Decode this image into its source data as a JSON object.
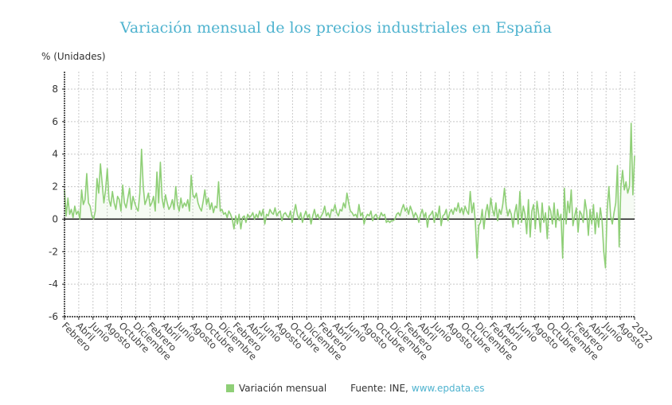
{
  "chart_data": {
    "type": "line",
    "title": "Variación mensual de los precios industriales en España",
    "ylabel": "% (Unidades)",
    "xlabel": "",
    "ylim": [
      -6,
      8
    ],
    "yticks": [
      -6,
      -4,
      -2,
      0,
      2,
      4,
      6,
      8
    ],
    "grid": true,
    "legend_position": "bottom",
    "x_tick_labels": [
      "Febrero",
      "Abril",
      "Junio",
      "Agosto",
      "Octubre",
      "Diciembre",
      "Febrero",
      "Abril",
      "Junio",
      "Agosto",
      "Octubre",
      "Diciembre",
      "Febrero",
      "Abril",
      "Junio",
      "Agosto",
      "Octubre",
      "Diciembre",
      "Febrero",
      "Abril",
      "Junio",
      "Agosto",
      "Octubre",
      "Diciembre",
      "Febrero",
      "Abril",
      "Junio",
      "Agosto",
      "Octubre",
      "Diciembre",
      "Febrero",
      "Abril",
      "Junio",
      "Agosto",
      "Octubre",
      "Diciembre",
      "Febrero",
      "Abril",
      "Junio",
      "Agosto",
      "2022"
    ],
    "series": [
      {
        "name": "Variación mensual",
        "color": "#8fcf77",
        "values": [
          1.8,
          0.2,
          1.3,
          0.3,
          0.6,
          0.1,
          0.8,
          0.3,
          0.5,
          0.0,
          1.8,
          0.9,
          1.2,
          2.8,
          1.0,
          0.8,
          0.2,
          0.0,
          0.5,
          2.5,
          1.6,
          3.4,
          2.2,
          1.0,
          1.8,
          3.1,
          1.2,
          0.8,
          1.7,
          1.0,
          0.6,
          1.4,
          1.2,
          0.5,
          2.1,
          1.0,
          0.7,
          1.3,
          1.9,
          0.6,
          1.4,
          1.0,
          0.7,
          0.5,
          1.6,
          4.3,
          2.0,
          0.9,
          1.2,
          1.6,
          0.8,
          1.0,
          1.4,
          0.5,
          2.9,
          1.0,
          3.5,
          1.3,
          0.7,
          1.5,
          1.0,
          0.6,
          0.8,
          1.2,
          0.6,
          2.0,
          0.9,
          0.5,
          1.3,
          0.7,
          1.0,
          0.8,
          1.2,
          0.5,
          2.7,
          1.5,
          1.3,
          1.6,
          1.0,
          0.7,
          0.5,
          1.1,
          1.8,
          0.9,
          1.3,
          0.6,
          1.0,
          0.4,
          0.8,
          0.7,
          2.3,
          0.5,
          0.6,
          0.3,
          0.4,
          0.1,
          0.5,
          0.3,
          0.0,
          -0.6,
          0.2,
          -0.3,
          0.3,
          -0.6,
          0.1,
          0.2,
          -0.2,
          0.3,
          0.1,
          0.2,
          0.4,
          0.0,
          0.3,
          0.1,
          0.5,
          0.2,
          0.6,
          -0.3,
          0.3,
          0.2,
          0.6,
          0.4,
          0.3,
          0.7,
          0.2,
          0.4,
          0.5,
          -0.1,
          0.3,
          0.4,
          0.2,
          0.1,
          0.5,
          -0.2,
          0.4,
          0.9,
          0.3,
          0.0,
          0.4,
          -0.2,
          0.2,
          0.5,
          0.1,
          0.3,
          -0.3,
          0.2,
          0.6,
          0.1,
          0.3,
          0.0,
          0.2,
          0.4,
          0.8,
          0.2,
          0.4,
          0.1,
          0.6,
          0.5,
          0.9,
          0.4,
          0.2,
          0.6,
          0.5,
          1.0,
          0.7,
          1.6,
          1.0,
          0.5,
          0.4,
          0.2,
          0.3,
          0.1,
          0.9,
          0.2,
          0.4,
          -0.3,
          0.1,
          0.3,
          0.2,
          0.5,
          -0.1,
          0.2,
          0.3,
          0.0,
          0.1,
          0.4,
          0.2,
          0.3,
          -0.2,
          -0.1,
          -0.2,
          -0.1,
          -0.1,
          0.0,
          0.3,
          0.4,
          0.2,
          0.6,
          0.9,
          0.5,
          0.7,
          0.3,
          0.8,
          0.5,
          0.1,
          0.4,
          0.2,
          -0.2,
          0.3,
          0.6,
          0.1,
          0.4,
          -0.5,
          0.2,
          0.3,
          0.5,
          -0.2,
          0.4,
          0.1,
          0.8,
          -0.4,
          0.2,
          0.3,
          0.6,
          -0.1,
          0.4,
          0.6,
          0.3,
          0.7,
          0.5,
          1.0,
          0.4,
          0.7,
          0.3,
          0.8,
          0.5,
          0.3,
          1.7,
          0.4,
          1.0,
          -0.2,
          -2.4,
          -0.4,
          -0.2,
          0.6,
          -0.6,
          0.4,
          0.9,
          0.1,
          1.3,
          0.6,
          0.2,
          1.0,
          -0.1,
          0.6,
          0.3,
          0.9,
          1.9,
          0.8,
          0.2,
          0.6,
          0.3,
          -0.5,
          0.4,
          0.9,
          -0.3,
          1.7,
          -0.2,
          0.8,
          0.3,
          -0.9,
          1.2,
          -1.1,
          0.5,
          0.9,
          -0.6,
          1.1,
          0.3,
          -0.8,
          1.0,
          -0.2,
          0.4,
          -1.2,
          0.8,
          0.5,
          -0.3,
          1.0,
          -0.5,
          0.6,
          -0.1,
          0.3,
          -2.4,
          1.9,
          -0.3,
          1.1,
          0.4,
          1.8,
          -0.4,
          0.2,
          0.7,
          -0.8,
          0.5,
          0.3,
          -0.2,
          1.2,
          0.5,
          -1.0,
          0.6,
          -0.3,
          0.9,
          -0.9,
          0.4,
          -0.5,
          0.7,
          -0.1,
          -2.0,
          -3.0,
          0.6,
          2.0,
          0.2,
          -0.3,
          0.4,
          1.0,
          3.3,
          -1.7,
          2.0,
          3.0,
          1.8,
          2.3,
          1.6,
          2.0,
          5.9,
          1.5,
          3.9
        ]
      }
    ]
  },
  "legend": {
    "series_label": "Variación mensual",
    "source_label": "Fuente: INE,",
    "source_link": "www.epdata.es"
  }
}
